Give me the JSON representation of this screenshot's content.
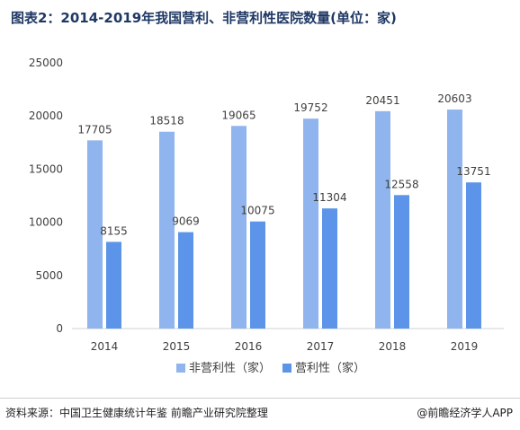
{
  "title": "图表2：2014-2019年我国营利、非营利性医院数量(单位：家)",
  "footer": {
    "source": "资料来源：中国卫生健康统计年鉴 前瞻产业研究院整理",
    "credit": "@前瞻经济学人APP"
  },
  "chart_data": {
    "type": "bar",
    "categories": [
      "2014",
      "2015",
      "2016",
      "2017",
      "2018",
      "2019"
    ],
    "series": [
      {
        "name": "非营利性（家）",
        "values": [
          17705,
          18518,
          19065,
          19752,
          20451,
          20603
        ],
        "color": "#8fb4ee"
      },
      {
        "name": "营利性（家）",
        "values": [
          8155,
          9069,
          10075,
          11304,
          12558,
          13751
        ],
        "color": "#5b94e8"
      }
    ],
    "ylim": [
      0,
      25000
    ],
    "yticks": [
      0,
      5000,
      10000,
      15000,
      20000,
      25000
    ],
    "grid": false,
    "legend_position": "bottom-center"
  }
}
